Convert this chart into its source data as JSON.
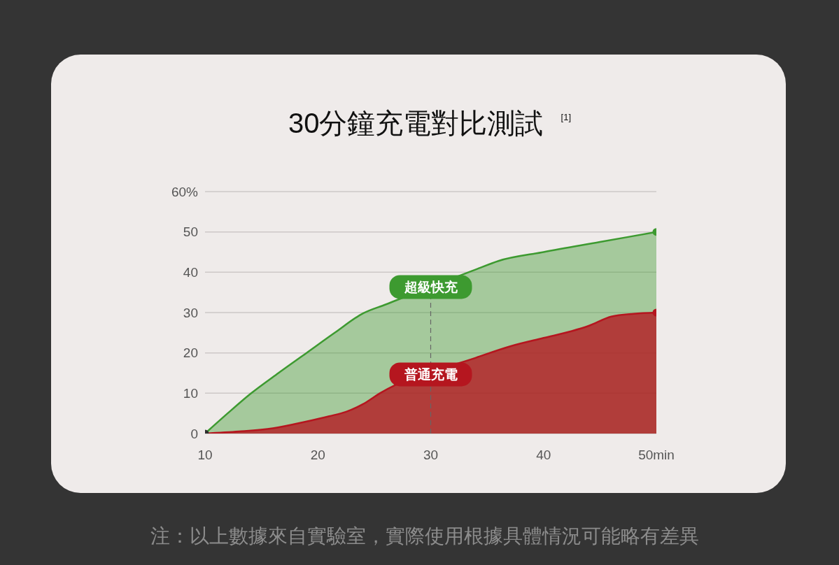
{
  "chart_data": {
    "type": "area",
    "title": "30分鐘充電對比測試 $^{[1]}$",
    "xlim": [
      10,
      50
    ],
    "xticks": [
      10,
      20,
      30,
      40,
      {
        "value": 50,
        "label": "50min"
      }
    ],
    "ylim": [
      0,
      60
    ],
    "yticks": [
      0,
      10,
      20,
      30,
      40,
      50,
      {
        "value": 60,
        "label": "60%"
      }
    ],
    "grid": "y",
    "series": [
      {
        "name": "超級快充",
        "color": "#3d9a30",
        "x": [
          10,
          12,
          14,
          16.5,
          19,
          21.5,
          24,
          26,
          34,
          36,
          40,
          45,
          50
        ],
        "values": [
          0,
          5,
          9.8,
          15,
          20,
          25,
          29.8,
          32,
          40.7,
          42.8,
          45,
          47.5,
          50
        ]
      },
      {
        "name": "普通充電",
        "color": "#b5161f",
        "x": [
          10,
          13,
          16,
          19,
          21,
          22.5,
          24,
          25.5,
          34,
          37,
          40,
          42.5,
          44,
          46,
          48,
          50
        ],
        "values": [
          0,
          0.5,
          1.3,
          3,
          4.3,
          5.4,
          7.3,
          10,
          18.8,
          21.6,
          23.7,
          25.4,
          26.7,
          29,
          29.7,
          30
        ]
      },
      {
        "type": "scatter",
        "marker": "circle",
        "x": [
          10,
          50,
          50
        ],
        "values": [
          0,
          50,
          30
        ],
        "colors": [
          "#2e2e2e",
          "#3d9a30",
          "#b5161f"
        ]
      }
    ],
    "ref_lines": [
      {
        "axis": "x",
        "value": 30,
        "line_style": "dashed",
        "color": "#666666"
      }
    ],
    "annotations": [
      "注：以上數據來自實驗室，實際使用根據具體情況可能略有差異"
    ]
  }
}
